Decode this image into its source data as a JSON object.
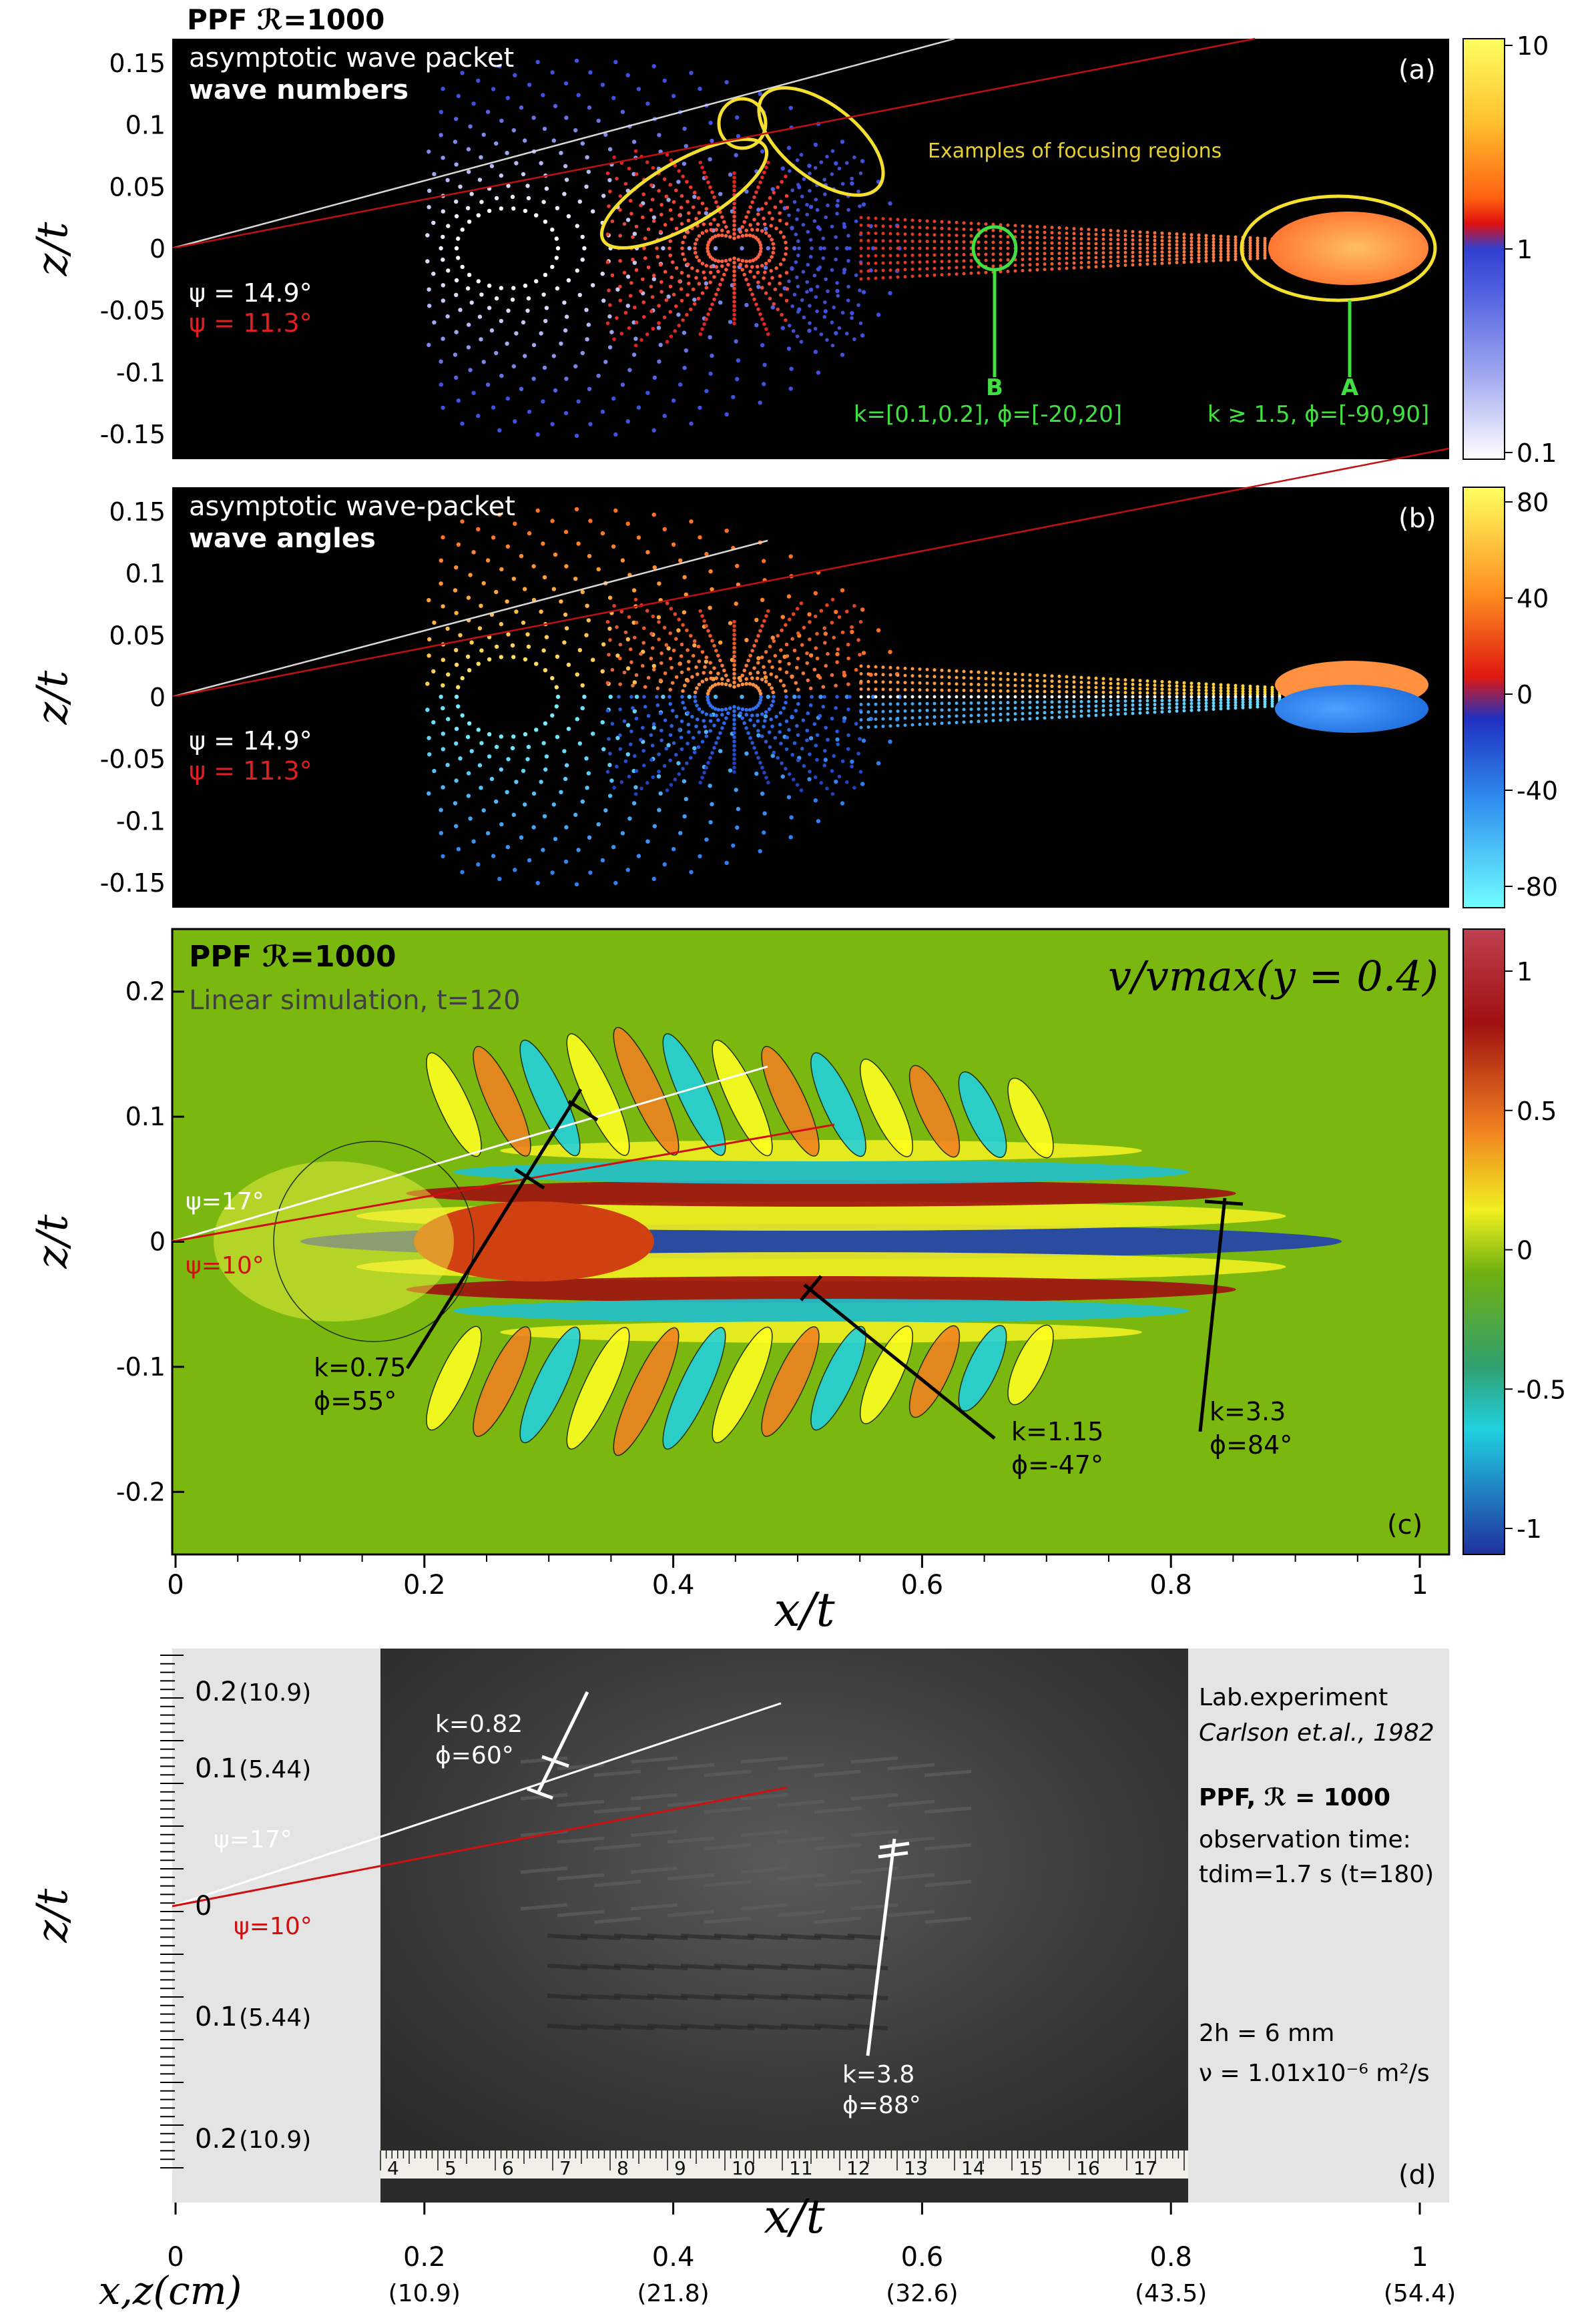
{
  "chart_data": [
    {
      "panel": "a",
      "type": "scatter",
      "title": "PPF ℛ=1000",
      "label1": "asymptotic wave packet",
      "label2": "wave numbers",
      "panel_label": "(a)",
      "annotation": "Examples of focusing regions",
      "psi1": "ψ = 14.9°",
      "psi2": "ψ = 11.3°",
      "pointA": "A",
      "pointA_text": "k ≳ 1.5, ϕ=[-90,90]",
      "pointB": "B",
      "pointB_text": "k=[0.1,0.2], ϕ=[-20,20]",
      "ylabel": "z/t",
      "ylim": [
        -0.17,
        0.17
      ],
      "yticks": [
        "0.15",
        "0.1",
        "0.05",
        "0",
        "-0.05",
        "-0.1",
        "-0.15"
      ],
      "colorbar": {
        "scale": "log",
        "ticks": [
          "10",
          "1",
          "0.1"
        ]
      }
    },
    {
      "panel": "b",
      "type": "scatter",
      "label1": "asymptotic wave-packet",
      "label2": "wave angles",
      "panel_label": "(b)",
      "psi1": "ψ = 14.9°",
      "psi2": "ψ = 11.3°",
      "ylabel": "z/t",
      "ylim": [
        -0.17,
        0.17
      ],
      "yticks": [
        "0.15",
        "0.1",
        "0.05",
        "0",
        "-0.05",
        "-0.1",
        "-0.15"
      ],
      "colorbar": {
        "ticks": [
          "80",
          "40",
          "0",
          "-40",
          "-80"
        ]
      }
    },
    {
      "panel": "c",
      "type": "heatmap",
      "title": "PPF ℛ=1000",
      "subtitle": "Linear simulation, t=120",
      "formula": "v/vmax(y = 0.4)",
      "panel_label": "(c)",
      "psi1": "ψ=17°",
      "psi2": "ψ=10°",
      "annotations": [
        {
          "k": "k=0.75",
          "phi": "ϕ=55°"
        },
        {
          "k": "k=1.15",
          "phi": "ϕ=-47°"
        },
        {
          "k": "k=3.3",
          "phi": "ϕ=84°"
        }
      ],
      "xlabel": "x/t",
      "ylabel": "z/t",
      "xlim": [
        0,
        1.03
      ],
      "ylim": [
        -0.25,
        0.25
      ],
      "xticks": [
        "0",
        "0.2",
        "0.4",
        "0.6",
        "0.8",
        "1"
      ],
      "yticks": [
        "0.2",
        "0.1",
        "0",
        "-0.1",
        "-0.2"
      ],
      "colorbar": {
        "ticks": [
          "1",
          "0.5",
          "0",
          "-0.5",
          "-1"
        ]
      }
    },
    {
      "panel": "d",
      "type": "photo",
      "text_lines": [
        "Lab.experiment",
        "Carlson et.al., 1982",
        "PPF, ℛ = 1000",
        "observation time:",
        "tdim=1.7 s (t=180)",
        "2h = 6 mm",
        "ν = 1.01x10⁻⁶ m²/s"
      ],
      "panel_label": "(d)",
      "psi1": "ψ=17°",
      "psi2": "ψ=10°",
      "annotations": [
        {
          "k": "k=0.82",
          "phi": "ϕ=60°"
        },
        {
          "k": "k=3.8",
          "phi": "ϕ=88°"
        }
      ],
      "yticks": [
        "0.2",
        "0.1",
        "0",
        "0.1",
        "0.2"
      ],
      "ytick_cm": [
        "(10.9)",
        "(5.44)",
        "",
        "(5.44)",
        "(10.9)"
      ],
      "ruler_numbers": [
        "4",
        "5",
        "6",
        "7",
        "8",
        "9",
        "10",
        "11",
        "12",
        "13",
        "14",
        "15",
        "16",
        "17"
      ],
      "xlabel": "x/t",
      "xlabel2": "x,z(cm)",
      "xticks": [
        "0",
        "0.2",
        "0.4",
        "0.6",
        "0.8",
        "1"
      ],
      "xtick_cm": [
        "",
        "(10.9)",
        "(21.8)",
        "(32.6)",
        "(43.5)",
        "(54.4)"
      ]
    }
  ]
}
